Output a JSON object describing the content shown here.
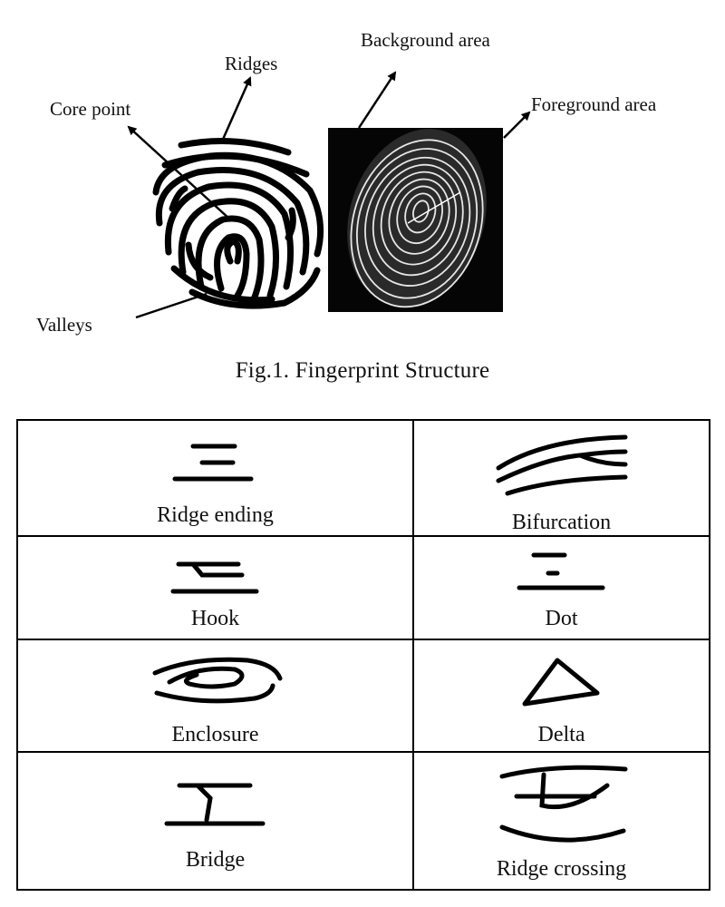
{
  "figure": {
    "callouts": {
      "ridges": "Ridges",
      "core_point": "Core point",
      "valleys": "Valleys",
      "background_area": "Background area",
      "foreground_area": "Foreground area"
    },
    "caption": "Fig.1. Fingerprint Structure"
  },
  "minutiae_table": {
    "rows": [
      [
        "Ridge ending",
        "Bifurcation"
      ],
      [
        "Hook",
        "Dot"
      ],
      [
        "Enclosure",
        "Delta"
      ],
      [
        "Bridge",
        "Ridge crossing"
      ]
    ]
  }
}
